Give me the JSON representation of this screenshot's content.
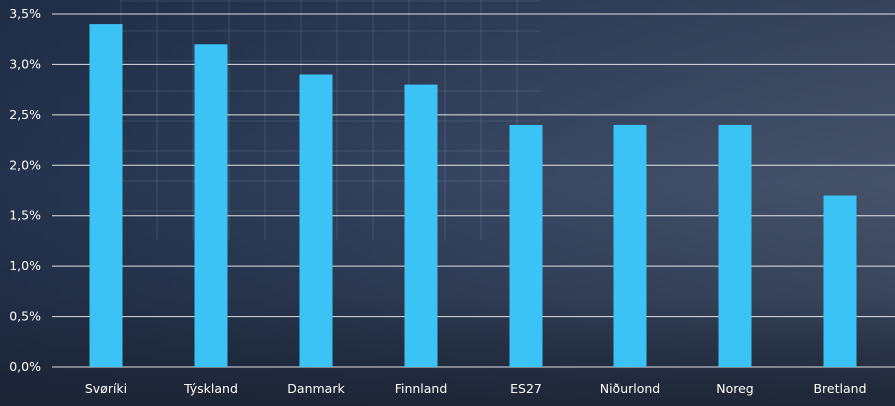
{
  "chart_data": {
    "type": "bar",
    "categories": [
      "Svøríki",
      "Týskland",
      "Danmark",
      "Finnland",
      "ES27",
      "Niðurlond",
      "Noreg",
      "Bretland"
    ],
    "values": [
      3.4,
      3.2,
      2.9,
      2.8,
      2.4,
      2.4,
      2.4,
      1.7
    ],
    "ylim": [
      0,
      3.5
    ],
    "yticks": [
      0,
      0.5,
      1.0,
      1.5,
      2.0,
      2.5,
      3.0,
      3.5
    ],
    "ytick_labels": [
      "0,0%",
      "0,5%",
      "1,0%",
      "1,5%",
      "2,0%",
      "2,5%",
      "3,0%",
      "3,5%"
    ],
    "grid": true,
    "colors": {
      "bar": "#3cc3f5",
      "grid": "#ffffff",
      "text": "#ffffff"
    }
  }
}
